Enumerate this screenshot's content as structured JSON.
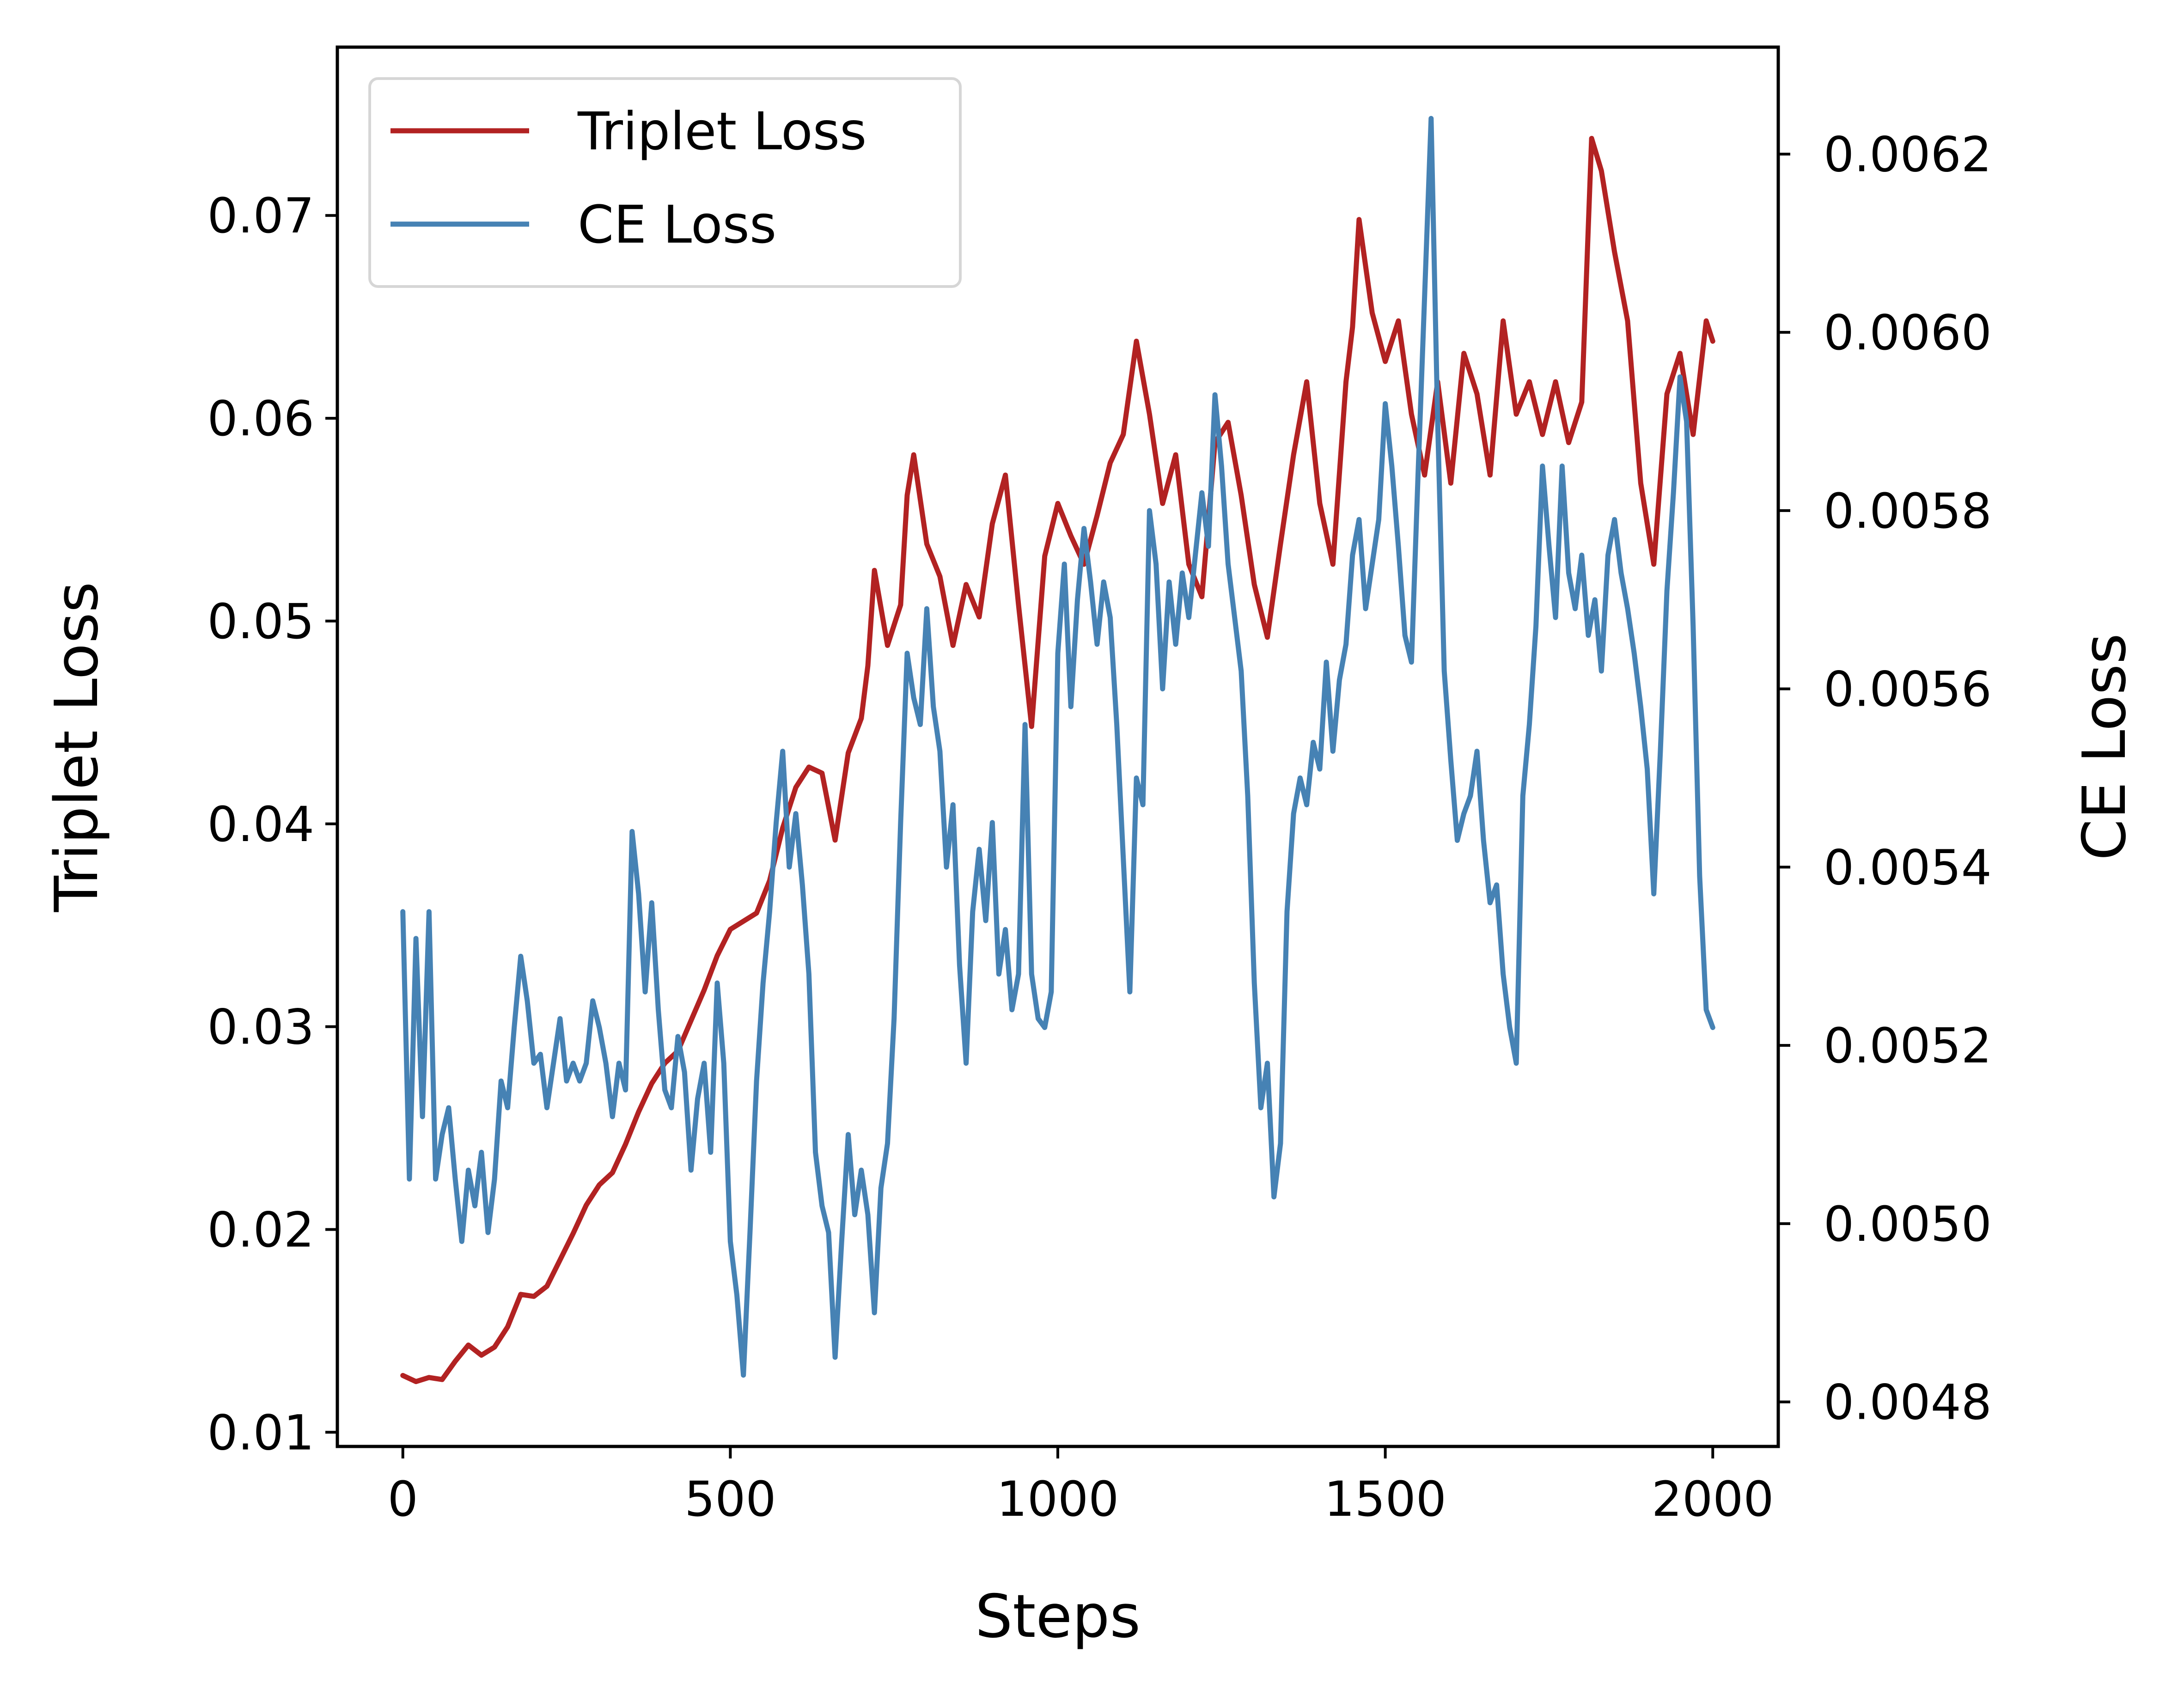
{
  "chart_data": {
    "type": "line",
    "title": "",
    "xlabel": "Steps",
    "ylabel": "Triplet Loss",
    "ylabel_right": "CE Loss",
    "xlim": [
      -100,
      2100
    ],
    "ylim": [
      0.0093,
      0.0783
    ],
    "ylim_right": [
      0.00475,
      0.00632
    ],
    "x_ticks": [
      0,
      500,
      1000,
      1500,
      2000
    ],
    "x_tick_labels": [
      "0",
      "500",
      "1000",
      "1500",
      "2000"
    ],
    "y_ticks": [
      0.01,
      0.02,
      0.03,
      0.04,
      0.05,
      0.06,
      0.07
    ],
    "y_tick_labels": [
      "0.01",
      "0.02",
      "0.03",
      "0.04",
      "0.05",
      "0.06",
      "0.07"
    ],
    "y_ticks_right": [
      0.0048,
      0.005,
      0.0052,
      0.0054,
      0.0056,
      0.0058,
      0.006,
      0.0062
    ],
    "y_tick_labels_right": [
      "0.0048",
      "0.0050",
      "0.0052",
      "0.0054",
      "0.0056",
      "0.0058",
      "0.0060",
      "0.0062"
    ],
    "grid": false,
    "legend_position": "top-left",
    "series": [
      {
        "name": "Triplet Loss",
        "axis": "left",
        "color": "#b22222",
        "x": [
          0,
          20,
          40,
          60,
          80,
          100,
          120,
          140,
          160,
          180,
          200,
          220,
          240,
          260,
          280,
          300,
          320,
          340,
          360,
          380,
          400,
          420,
          440,
          460,
          480,
          500,
          520,
          540,
          560,
          580,
          600,
          620,
          640,
          660,
          680,
          700,
          710,
          720,
          740,
          760,
          770,
          780,
          800,
          820,
          840,
          860,
          880,
          900,
          920,
          940,
          960,
          980,
          1000,
          1020,
          1040,
          1060,
          1080,
          1100,
          1120,
          1140,
          1160,
          1180,
          1200,
          1220,
          1240,
          1260,
          1280,
          1300,
          1320,
          1340,
          1360,
          1380,
          1400,
          1420,
          1440,
          1450,
          1460,
          1480,
          1500,
          1520,
          1540,
          1560,
          1580,
          1600,
          1620,
          1640,
          1660,
          1680,
          1700,
          1720,
          1740,
          1760,
          1780,
          1800,
          1815,
          1830,
          1850,
          1870,
          1890,
          1910,
          1930,
          1950,
          1970,
          1990,
          2000
        ],
        "values": [
          0.0128,
          0.0125,
          0.0127,
          0.0126,
          0.0135,
          0.0143,
          0.0138,
          0.0142,
          0.0152,
          0.0168,
          0.0167,
          0.0172,
          0.0185,
          0.0198,
          0.0212,
          0.0222,
          0.0228,
          0.0242,
          0.0258,
          0.0272,
          0.0282,
          0.0288,
          0.0303,
          0.0318,
          0.0335,
          0.0348,
          0.0352,
          0.0356,
          0.0372,
          0.0398,
          0.0418,
          0.0428,
          0.0425,
          0.0392,
          0.0435,
          0.0452,
          0.0478,
          0.0525,
          0.0488,
          0.0508,
          0.0562,
          0.0582,
          0.0538,
          0.0522,
          0.0488,
          0.0518,
          0.0502,
          0.0548,
          0.0572,
          0.0508,
          0.0448,
          0.0532,
          0.0558,
          0.0542,
          0.0528,
          0.0552,
          0.0578,
          0.0592,
          0.0638,
          0.0602,
          0.0558,
          0.0582,
          0.0528,
          0.0512,
          0.0588,
          0.0598,
          0.0562,
          0.0518,
          0.0492,
          0.0538,
          0.0582,
          0.0618,
          0.0558,
          0.0528,
          0.0618,
          0.0645,
          0.0698,
          0.0652,
          0.0628,
          0.0648,
          0.0602,
          0.0572,
          0.0618,
          0.0568,
          0.0632,
          0.0612,
          0.0572,
          0.0648,
          0.0602,
          0.0618,
          0.0592,
          0.0618,
          0.0588,
          0.0608,
          0.0738,
          0.0722,
          0.0682,
          0.0648,
          0.0568,
          0.0528,
          0.0612,
          0.0632,
          0.0592,
          0.0648,
          0.0638
        ]
      },
      {
        "name": "CE Loss",
        "axis": "right",
        "color": "#4682b4",
        "x": [
          0,
          10,
          20,
          30,
          40,
          50,
          60,
          70,
          80,
          90,
          100,
          110,
          120,
          130,
          140,
          150,
          160,
          170,
          180,
          190,
          200,
          210,
          220,
          230,
          240,
          250,
          260,
          270,
          280,
          290,
          300,
          310,
          320,
          330,
          340,
          350,
          360,
          370,
          380,
          390,
          400,
          410,
          420,
          430,
          440,
          450,
          460,
          470,
          480,
          490,
          500,
          510,
          520,
          530,
          540,
          550,
          560,
          570,
          580,
          590,
          600,
          610,
          620,
          630,
          640,
          650,
          660,
          670,
          680,
          690,
          700,
          710,
          720,
          730,
          740,
          750,
          760,
          770,
          780,
          790,
          800,
          810,
          820,
          830,
          840,
          850,
          860,
          870,
          880,
          890,
          900,
          910,
          920,
          930,
          940,
          950,
          960,
          970,
          980,
          990,
          1000,
          1010,
          1020,
          1030,
          1040,
          1050,
          1060,
          1070,
          1080,
          1090,
          1100,
          1110,
          1120,
          1130,
          1140,
          1150,
          1160,
          1170,
          1180,
          1190,
          1200,
          1210,
          1220,
          1230,
          1240,
          1250,
          1260,
          1270,
          1280,
          1290,
          1300,
          1310,
          1320,
          1330,
          1340,
          1350,
          1360,
          1370,
          1380,
          1390,
          1400,
          1410,
          1420,
          1430,
          1440,
          1450,
          1460,
          1470,
          1480,
          1490,
          1500,
          1510,
          1520,
          1530,
          1540,
          1550,
          1560,
          1570,
          1580,
          1590,
          1600,
          1610,
          1620,
          1630,
          1640,
          1650,
          1660,
          1670,
          1680,
          1690,
          1700,
          1710,
          1720,
          1730,
          1740,
          1750,
          1760,
          1770,
          1780,
          1790,
          1800,
          1810,
          1820,
          1830,
          1840,
          1850,
          1860,
          1870,
          1880,
          1890,
          1900,
          1910,
          1920,
          1930,
          1940,
          1950,
          1960,
          1970,
          1980,
          1990,
          2000
        ],
        "values": [
          0.00535,
          0.00505,
          0.00532,
          0.00512,
          0.00535,
          0.00505,
          0.0051,
          0.00513,
          0.00505,
          0.00498,
          0.00506,
          0.00502,
          0.00508,
          0.00499,
          0.00505,
          0.00516,
          0.00513,
          0.00522,
          0.0053,
          0.00525,
          0.00518,
          0.00519,
          0.00513,
          0.00518,
          0.00523,
          0.00516,
          0.00518,
          0.00516,
          0.00518,
          0.00525,
          0.00522,
          0.00518,
          0.00512,
          0.00518,
          0.00515,
          0.00544,
          0.00537,
          0.00526,
          0.00536,
          0.00524,
          0.00515,
          0.00513,
          0.00521,
          0.00517,
          0.00506,
          0.00514,
          0.00518,
          0.00508,
          0.00527,
          0.00518,
          0.00498,
          0.00492,
          0.00483,
          0.00499,
          0.00516,
          0.00527,
          0.00535,
          0.00545,
          0.00553,
          0.0054,
          0.00546,
          0.00538,
          0.00528,
          0.00508,
          0.00502,
          0.00499,
          0.00485,
          0.00498,
          0.0051,
          0.00501,
          0.00506,
          0.00501,
          0.0049,
          0.00504,
          0.00509,
          0.00523,
          0.00545,
          0.00564,
          0.00559,
          0.00556,
          0.00569,
          0.00558,
          0.00553,
          0.0054,
          0.00547,
          0.00529,
          0.00518,
          0.00535,
          0.00542,
          0.00534,
          0.00545,
          0.00528,
          0.00533,
          0.00524,
          0.00528,
          0.00556,
          0.00528,
          0.00523,
          0.00522,
          0.00526,
          0.00564,
          0.00574,
          0.00558,
          0.0057,
          0.00578,
          0.00572,
          0.00565,
          0.00572,
          0.00568,
          0.00556,
          0.00541,
          0.00526,
          0.0055,
          0.00547,
          0.0058,
          0.00574,
          0.0056,
          0.00572,
          0.00565,
          0.00573,
          0.00568,
          0.00575,
          0.00582,
          0.00576,
          0.00593,
          0.00585,
          0.00574,
          0.00568,
          0.00562,
          0.00548,
          0.00527,
          0.00513,
          0.00518,
          0.00503,
          0.00509,
          0.00535,
          0.00546,
          0.0055,
          0.00547,
          0.00554,
          0.00551,
          0.00563,
          0.00553,
          0.00561,
          0.00565,
          0.00575,
          0.00579,
          0.00569,
          0.00574,
          0.00579,
          0.00592,
          0.00585,
          0.00576,
          0.00566,
          0.00563,
          0.00584,
          0.00604,
          0.00624,
          0.0059,
          0.00562,
          0.00552,
          0.00543,
          0.00546,
          0.00548,
          0.00553,
          0.00543,
          0.00536,
          0.00538,
          0.00528,
          0.00522,
          0.00518,
          0.00548,
          0.00556,
          0.00567,
          0.00585,
          0.00576,
          0.00568,
          0.00585,
          0.00573,
          0.00569,
          0.00575,
          0.00566,
          0.0057,
          0.00562,
          0.00575,
          0.00579,
          0.00573,
          0.00569,
          0.00564,
          0.00558,
          0.00551,
          0.00537,
          0.00553,
          0.00571,
          0.00582,
          0.00595,
          0.0059,
          0.00567,
          0.00539,
          0.00524,
          0.00522
        ]
      }
    ]
  }
}
